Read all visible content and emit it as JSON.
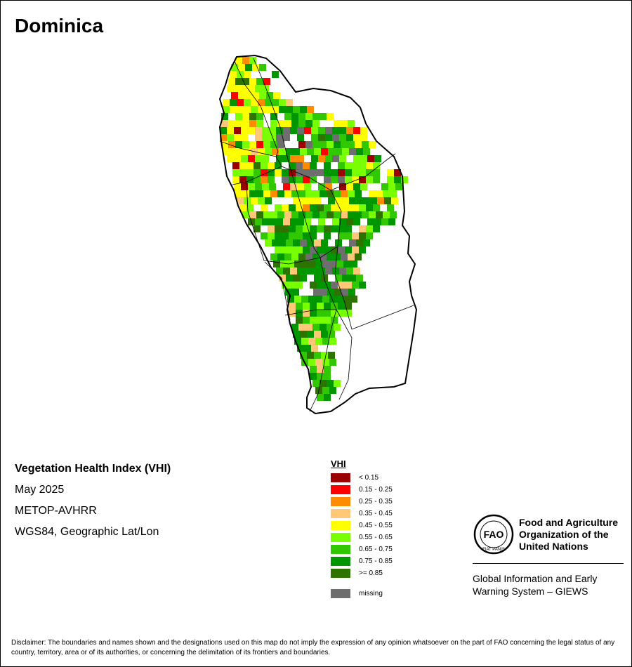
{
  "title": "Dominica",
  "info": {
    "index_name": "Vegetation Health Index (VHI)",
    "date": "May 2025",
    "sensor": "METOP-AVHRR",
    "projection": "WGS84, Geographic Lat/Lon"
  },
  "legend": {
    "title": "VHI",
    "classes": [
      {
        "label": "< 0.15",
        "color": "#9b0000"
      },
      {
        "label": "0.15 - 0.25",
        "color": "#ff0000"
      },
      {
        "label": "0.25 - 0.35",
        "color": "#ff8c00"
      },
      {
        "label": "0.35 - 0.45",
        "color": "#ffc878"
      },
      {
        "label": "0.45 - 0.55",
        "color": "#ffff00"
      },
      {
        "label": "0.55 - 0.65",
        "color": "#78ff00"
      },
      {
        "label": "0.65 - 0.75",
        "color": "#32c800"
      },
      {
        "label": "0.75 - 0.85",
        "color": "#009600"
      },
      {
        "label": ">= 0.85",
        "color": "#2d7300"
      }
    ],
    "missing": {
      "label": "missing",
      "color": "#6e6e6e"
    }
  },
  "org": {
    "line1": "Food and Agriculture",
    "line2": "Organization of the",
    "line3": "United Nations",
    "logo_letters": "FAO",
    "logo_motto": "FIAT PANIS"
  },
  "giews": {
    "line1": "Global Information and Early",
    "line2": "Warning System – GIEWS"
  },
  "disclaimer": "Disclaimer: The boundaries and names shown and the designations used on this map do not imply the expression of any opinion whatsoever on the part of FAO concerning the legal status of any country, territory, area or of its authorities, or concerning the delimitation of its frontiers and boundaries."
}
